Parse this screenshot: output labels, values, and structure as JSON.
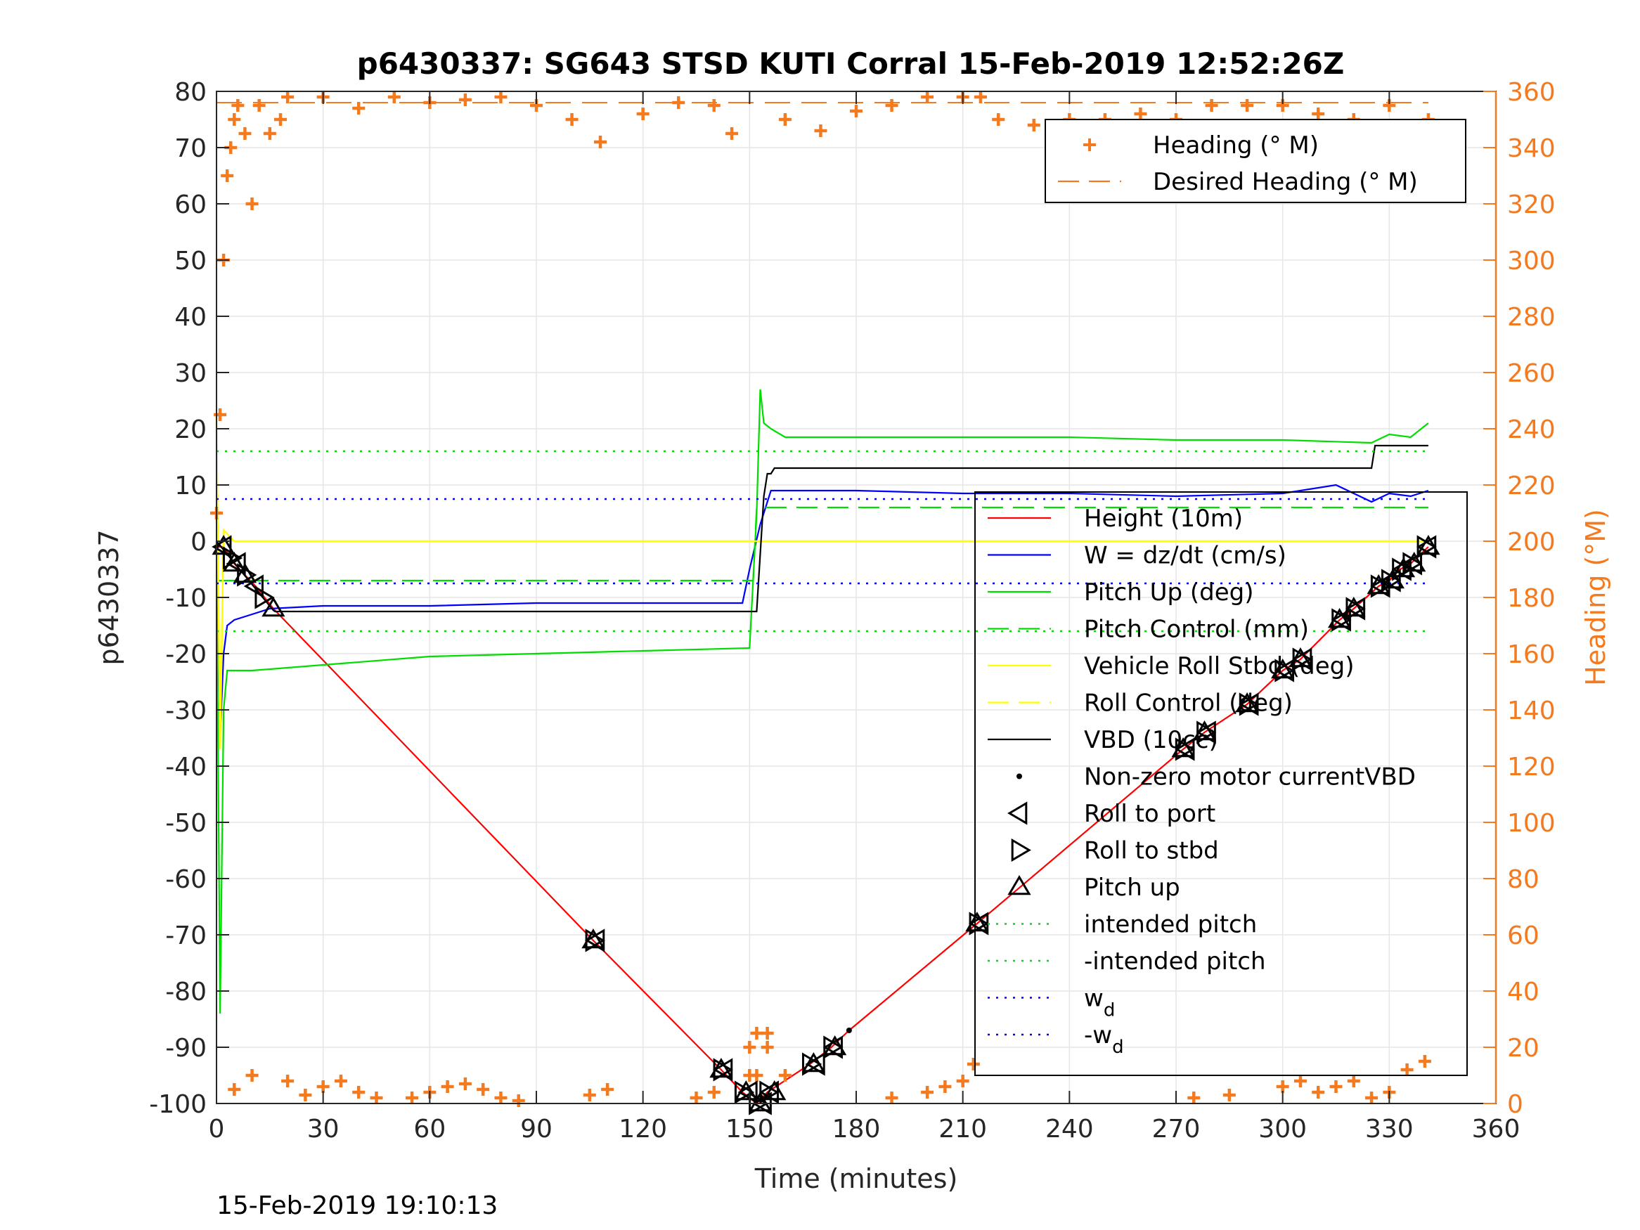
{
  "chart_data": {
    "type": "line",
    "title": "p6430337: SG643 STSD KUTI Corral 15-Feb-2019 12:52:26Z",
    "xlabel": "Time (minutes)",
    "ylabel": "p6430337",
    "ylabel_right": "Heading (°M)",
    "xlim": [
      0,
      360
    ],
    "ylim": [
      -100,
      80
    ],
    "ylim_right": [
      0,
      360
    ],
    "x_ticks": [
      "0",
      "30",
      "60",
      "90",
      "120",
      "150",
      "180",
      "210",
      "240",
      "270",
      "300",
      "330",
      "360"
    ],
    "y_ticks": [
      "-100",
      "-90",
      "-80",
      "-70",
      "-60",
      "-50",
      "-40",
      "-30",
      "-20",
      "-10",
      "0",
      "10",
      "20",
      "30",
      "40",
      "50",
      "60",
      "70",
      "80"
    ],
    "y_ticks_right": [
      "0",
      "20",
      "40",
      "60",
      "80",
      "100",
      "120",
      "140",
      "160",
      "180",
      "200",
      "220",
      "240",
      "260",
      "280",
      "300",
      "320",
      "340",
      "360"
    ],
    "grid": true,
    "footer_timestamp": "15-Feb-2019 19:10:13",
    "legend_heading": [
      {
        "label": "Heading (° M)",
        "color": "#f47a1f",
        "style": "plus"
      },
      {
        "label": "Desired Heading (° M)",
        "color": "#f47a1f",
        "style": "dashed"
      }
    ],
    "legend_main": [
      {
        "label": "Height (10m)",
        "color": "#ff0000",
        "style": "solid"
      },
      {
        "label": "W = dz/dt (cm/s)",
        "color": "#0000ff",
        "style": "solid"
      },
      {
        "label": "Pitch Up (deg)",
        "color": "#00dd00",
        "style": "solid"
      },
      {
        "label": "Pitch Control (mm)",
        "color": "#00dd00",
        "style": "dashed"
      },
      {
        "label": "Vehicle Roll Stbd (deg)",
        "color": "#ffff00",
        "style": "solid"
      },
      {
        "label": "Roll Control (deg)",
        "color": "#ffff00",
        "style": "dashed"
      },
      {
        "label": "VBD (10cc)",
        "color": "#000000",
        "style": "solid"
      },
      {
        "label": "Non-zero motor currentVBD",
        "color": "#000000",
        "style": "dot"
      },
      {
        "label": "Roll to port",
        "color": "#000000",
        "style": "tri-left"
      },
      {
        "label": "Roll to stbd",
        "color": "#000000",
        "style": "tri-right"
      },
      {
        "label": "Pitch up",
        "color": "#000000",
        "style": "tri-up"
      },
      {
        "label": "intended pitch",
        "color": "#00dd00",
        "style": "dotted"
      },
      {
        "label": "-intended pitch",
        "color": "#00dd00",
        "style": "dotted"
      },
      {
        "label": "w",
        "sub": "d",
        "color": "#0000ff",
        "style": "dotted"
      },
      {
        "label": "-w",
        "sub": "d",
        "color": "#0000ff",
        "style": "dotted"
      }
    ],
    "series": [
      {
        "name": "Height (10m)",
        "color": "#ff0000",
        "x": [
          0,
          2,
          5,
          8,
          11,
          16,
          106,
          142,
          148,
          152,
          155,
          167,
          173,
          178,
          214,
          272,
          278,
          290,
          300,
          305,
          316,
          320,
          327,
          330,
          333,
          336,
          341
        ],
        "y": [
          -1,
          -1,
          -4,
          -6,
          -8,
          -12,
          -71,
          -94,
          -98,
          -100,
          -98,
          -93,
          -90,
          -87,
          -68,
          -37,
          -34,
          -29,
          -23,
          -21,
          -14,
          -12,
          -8,
          -7,
          -5,
          -4,
          -1
        ]
      },
      {
        "name": "W = dz/dt (cm/s)",
        "color": "#0000ff",
        "x": [
          0,
          1,
          2,
          3,
          5,
          10,
          15,
          30,
          60,
          90,
          120,
          135,
          148,
          150,
          153,
          156,
          180,
          210,
          240,
          270,
          300,
          315,
          325,
          330,
          336,
          341
        ],
        "y": [
          0,
          -35,
          -20,
          -15,
          -14,
          -13,
          -12,
          -11.5,
          -11.5,
          -11,
          -11,
          -11,
          -11,
          -5,
          3,
          9,
          9,
          8.5,
          8.5,
          8,
          8.5,
          10,
          7,
          8.5,
          8,
          9
        ]
      },
      {
        "name": "Pitch Up (deg)",
        "color": "#00dd00",
        "x": [
          0,
          1,
          2,
          3,
          5,
          10,
          30,
          60,
          90,
          120,
          150,
          152,
          153,
          154,
          156,
          160,
          180,
          210,
          240,
          270,
          300,
          325,
          330,
          336,
          341
        ],
        "y": [
          0,
          -84,
          -30,
          -23,
          -23,
          -23,
          -22,
          -20.5,
          -20,
          -19.5,
          -19,
          5,
          27,
          21,
          20,
          18.5,
          18.5,
          18.5,
          18.5,
          18,
          18,
          17.5,
          19,
          18.5,
          21
        ]
      },
      {
        "name": "Pitch Control (mm)",
        "color": "#00dd00",
        "x": [
          0,
          150,
          151,
          152,
          153,
          341
        ],
        "y": [
          -7,
          -7,
          -7,
          6,
          6,
          6
        ]
      },
      {
        "name": "Vehicle Roll Stbd (deg)",
        "color": "#ffff00",
        "x": [
          0,
          1,
          2,
          5,
          10,
          15,
          30,
          60,
          90,
          120,
          150,
          153,
          156,
          180,
          210,
          240,
          270,
          300,
          330,
          341
        ],
        "y": [
          22,
          -37,
          2,
          0,
          0,
          0,
          0,
          0,
          0,
          0,
          0,
          0,
          0,
          0,
          0,
          0,
          0,
          0,
          0,
          0
        ]
      },
      {
        "name": "VBD (10cc)",
        "color": "#000000",
        "x": [
          0,
          16,
          16.5,
          150,
          152,
          154,
          155,
          156,
          157,
          158,
          162,
          163,
          325,
          326,
          341
        ],
        "y": [
          0,
          -12.3,
          -12.5,
          -12.5,
          -12.5,
          8,
          12,
          12,
          13,
          13,
          13,
          13,
          13,
          17,
          17
        ]
      },
      {
        "name": "intended pitch",
        "color": "#00dd00",
        "x": [
          0,
          341
        ],
        "y": [
          16,
          16
        ]
      },
      {
        "name": "-intended pitch",
        "color": "#00dd00",
        "x": [
          0,
          341
        ],
        "y": [
          -16,
          -16
        ]
      },
      {
        "name": "w_d",
        "color": "#0000ff",
        "x": [
          0,
          341
        ],
        "y": [
          7.5,
          7.5
        ]
      },
      {
        "name": "-w_d",
        "color": "#0000ff",
        "x": [
          0,
          341
        ],
        "y": [
          -7.5,
          -7.5
        ]
      },
      {
        "name": "Heading (° M)",
        "color": "#f47a1f",
        "axis": "right",
        "x": [
          0,
          1,
          2,
          3,
          4,
          5,
          6,
          8,
          10,
          12,
          15,
          18,
          20,
          30,
          40,
          50,
          60,
          70,
          80,
          90,
          100,
          108,
          120,
          130,
          140,
          145,
          150,
          152,
          155,
          160,
          170,
          180,
          190,
          200,
          210,
          215,
          220,
          230,
          240,
          250,
          260,
          270,
          280,
          290,
          300,
          310,
          320,
          330,
          336,
          341
        ],
        "y": [
          210,
          245,
          300,
          330,
          340,
          350,
          355,
          345,
          320,
          355,
          345,
          350,
          358,
          358,
          354,
          358,
          356,
          357,
          358,
          355,
          350,
          342,
          352,
          356,
          355,
          345,
          20,
          10,
          25,
          350,
          346,
          353,
          355,
          358,
          358,
          358,
          350,
          348,
          350,
          350,
          352,
          350,
          355,
          355,
          355,
          352,
          350,
          355,
          345,
          350
        ]
      },
      {
        "name": "Heading low-wrap (° M)",
        "color": "#f47a1f",
        "axis": "right",
        "x": [
          5,
          10,
          20,
          25,
          30,
          35,
          40,
          45,
          55,
          60,
          65,
          70,
          75,
          80,
          85,
          105,
          110,
          135,
          140,
          150,
          152,
          155,
          160,
          190,
          200,
          205,
          210,
          213,
          275,
          285,
          300,
          305,
          310,
          315,
          320,
          325,
          330,
          335,
          340
        ],
        "y": [
          5,
          10,
          8,
          3,
          6,
          8,
          4,
          2,
          2,
          4,
          6,
          7,
          5,
          2,
          1,
          3,
          5,
          2,
          4,
          10,
          25,
          20,
          10,
          2,
          4,
          6,
          8,
          14,
          2,
          3,
          6,
          8,
          4,
          6,
          8,
          2,
          4,
          12,
          15
        ]
      },
      {
        "name": "Desired Heading (° M)",
        "color": "#f47a1f",
        "axis": "right",
        "x": [
          0,
          341
        ],
        "y": [
          356,
          356
        ]
      }
    ],
    "markers": {
      "roll_to_port": {
        "x": [
          2,
          6,
          11,
          107,
          143,
          150,
          154,
          156,
          169,
          174,
          215,
          273,
          279,
          291,
          301,
          306,
          317,
          321,
          328,
          331,
          334,
          337,
          341
        ],
        "y": [
          -1,
          -4,
          -8,
          -71,
          -94,
          -98,
          -100,
          -98,
          -93,
          -90,
          -68,
          -37,
          -34,
          -29,
          -23,
          -21,
          -14,
          -12,
          -8,
          -7,
          -5,
          -4,
          -1
        ]
      },
      "roll_to_stbd": {
        "x": [
          4,
          8,
          13,
          106,
          142,
          148,
          152,
          155,
          167,
          173,
          214,
          272,
          278,
          290,
          300,
          305,
          316,
          320,
          327,
          330,
          333,
          336,
          340
        ],
        "y": [
          -3,
          -6,
          -10,
          -71,
          -94,
          -98,
          -100,
          -98,
          -93,
          -90,
          -68,
          -37,
          -34,
          -29,
          -23,
          -21,
          -14,
          -12,
          -8,
          -7,
          -5,
          -4,
          -1
        ]
      },
      "pitch_up": {
        "x": [
          2,
          5,
          8,
          16,
          106,
          142,
          149,
          153,
          157,
          168,
          174,
          214,
          272,
          278,
          290,
          300,
          305,
          316,
          320,
          327,
          331,
          334,
          337,
          341
        ],
        "y": [
          -1,
          -4,
          -6,
          -12,
          -71,
          -94,
          -98,
          -100,
          -98,
          -93,
          -90,
          -68,
          -37,
          -34,
          -29,
          -23,
          -21,
          -14,
          -12,
          -8,
          -7,
          -5,
          -4,
          -1
        ]
      },
      "nonzero_vbd": {
        "x": [
          178
        ],
        "y": [
          -87
        ]
      }
    }
  }
}
